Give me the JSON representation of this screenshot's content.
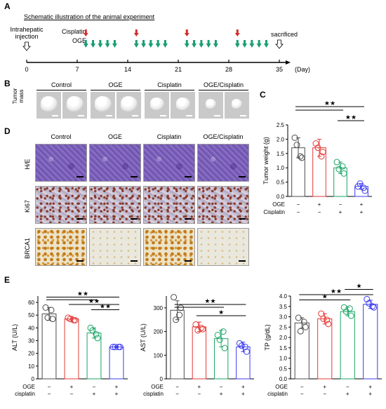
{
  "panels": {
    "A": "A",
    "B": "B",
    "C": "C",
    "D": "D",
    "E": "E"
  },
  "schematic": {
    "title": "Schematic illustration of the animal experiment",
    "injection_label": "Intrahepatic\ninjection",
    "cisplatin_label": "Cisplatin",
    "oge_label": "OGE",
    "sacrificed_label": "sacrificed",
    "days": [
      "0",
      "7",
      "14",
      "21",
      "28",
      "35"
    ],
    "day_unit": "(Day)",
    "cisplatin_days": [
      8,
      15,
      22,
      29
    ],
    "oge_days": [
      8,
      9,
      10,
      11,
      12,
      15,
      16,
      17,
      18,
      19,
      22,
      23,
      24,
      25,
      26,
      29,
      30,
      31,
      32,
      33
    ],
    "colors": {
      "cisplatin": "#d32f2f",
      "oge": "#1a9e74"
    }
  },
  "groups": [
    "Control",
    "OGE",
    "Cisplatin",
    "OGE/Cisplatin"
  ],
  "tumor_mass_label": "Tumor\nmass",
  "stain_rows": [
    "H/E",
    "Ki67",
    "BRCA1"
  ],
  "treatment_table": {
    "oge_label": "OGE",
    "cisplatin_label_C": "Cisplatin",
    "cisplatin_label_E": "cisplatin",
    "oge_signs": [
      "−",
      "+",
      "−",
      "+"
    ],
    "cisplatin_signs": [
      "−",
      "−",
      "+",
      "+"
    ]
  },
  "series_colors": [
    "#4d4d4d",
    "#e53935",
    "#1aa566",
    "#3b3bf0"
  ],
  "chart_data": [
    {
      "type": "bar",
      "id": "tumor_weight",
      "categories": [
        "Control",
        "OGE",
        "Cisplatin",
        "OGE/Cisplatin"
      ],
      "values": [
        1.7,
        1.7,
        1.0,
        0.35
      ],
      "errors": [
        0.35,
        0.3,
        0.2,
        0.1
      ],
      "points": [
        [
          2.05,
          1.35,
          1.8,
          1.4
        ],
        [
          1.85,
          1.55,
          1.7,
          1.4
        ],
        [
          1.2,
          0.8,
          0.95,
          1.05
        ],
        [
          0.35,
          0.2,
          0.45,
          0.3
        ]
      ],
      "ylabel": "Tumor weight (g)",
      "ylim": [
        0,
        2.5
      ],
      "yticks": [
        "0.0",
        "0.5",
        "1.0",
        "1.5",
        "2.0",
        "2.5"
      ],
      "significance": [
        {
          "from": 0,
          "to": 3,
          "label": "★★",
          "level": 1
        },
        {
          "from": 0,
          "to": 2,
          "label": "",
          "level": 0.75
        },
        {
          "from": 2,
          "to": 3,
          "label": "★★",
          "level": 0
        }
      ]
    },
    {
      "type": "bar",
      "id": "alt",
      "categories": [
        "Control",
        "OGE",
        "Cisplatin",
        "OGE/Cisplatin"
      ],
      "values": [
        51,
        47,
        36,
        25
      ],
      "errors": [
        5,
        2,
        4,
        0.5
      ],
      "points": [
        [
          56,
          47,
          48,
          54
        ],
        [
          48,
          46,
          47,
          46
        ],
        [
          40,
          32,
          38,
          35
        ],
        [
          25,
          25,
          25,
          25
        ]
      ],
      "ylabel": "ALT (U/L)",
      "ylim": [
        0,
        65
      ],
      "yticks": [
        "0",
        "10",
        "20",
        "30",
        "40",
        "50",
        "60"
      ],
      "significance": [
        {
          "from": 0,
          "to": 3,
          "label": "★★",
          "level": 3
        },
        {
          "from": 0,
          "to": 2,
          "label": "",
          "level": 2.5
        },
        {
          "from": 1,
          "to": 3,
          "label": "★★",
          "level": 1.6
        },
        {
          "from": 2,
          "to": 3,
          "label": "★★",
          "level": 0.6
        }
      ]
    },
    {
      "type": "bar",
      "id": "ast",
      "categories": [
        "Control",
        "OGE",
        "Cisplatin",
        "OGE/Cisplatin"
      ],
      "values": [
        290,
        220,
        170,
        135
      ],
      "errors": [
        40,
        20,
        35,
        20
      ],
      "points": [
        [
          345,
          300,
          250,
          270
        ],
        [
          230,
          210,
          205,
          215
        ],
        [
          185,
          130,
          165,
          200
        ],
        [
          150,
          115,
          140,
          135
        ]
      ],
      "ylabel": "AST (U/L)",
      "ylim": [
        0,
        350
      ],
      "yticks": [
        "0",
        "100",
        "200",
        "300"
      ],
      "significance": [
        {
          "from": 0,
          "to": 3,
          "label": "★★",
          "level": 2
        },
        {
          "from": 0,
          "to": 2,
          "label": "",
          "level": 1.5
        },
        {
          "from": 1,
          "to": 3,
          "label": "★",
          "level": 0
        }
      ]
    },
    {
      "type": "bar",
      "id": "tp",
      "categories": [
        "Control",
        "OGE",
        "Cisplatin",
        "OGE/Cisplatin"
      ],
      "values": [
        2.7,
        2.9,
        3.25,
        3.6
      ],
      "errors": [
        0.25,
        0.25,
        0.2,
        0.2
      ],
      "points": [
        [
          2.95,
          2.5,
          2.3,
          2.75
        ],
        [
          3.15,
          2.65,
          2.9,
          2.85
        ],
        [
          3.45,
          3.05,
          3.25,
          3.4
        ],
        [
          3.85,
          3.45,
          3.65,
          3.5
        ]
      ],
      "ylabel": "TP (g/dL)",
      "ylim": [
        0,
        4.0
      ],
      "yticks": [
        "0.0",
        "0.5",
        "1.0",
        "1.5",
        "2.0",
        "2.5",
        "3.0",
        "3.5",
        "4.0"
      ],
      "significance": [
        {
          "from": 2,
          "to": 3,
          "label": "★",
          "level": 2.6
        },
        {
          "from": 0,
          "to": 3,
          "label": "★★",
          "level": 1.6
        },
        {
          "from": 0,
          "to": 2,
          "label": "★",
          "level": 0.6
        }
      ]
    }
  ]
}
